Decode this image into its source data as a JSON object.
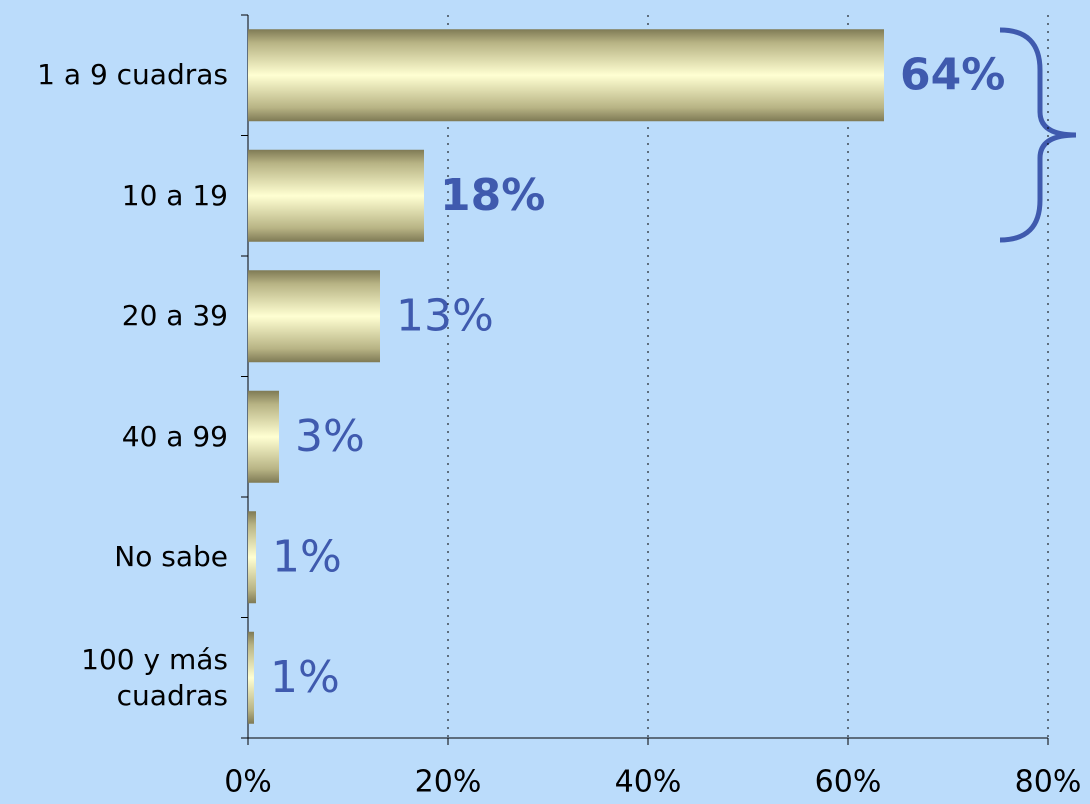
{
  "chart_data": {
    "type": "barh",
    "categories": [
      "1 a 9 cuadras",
      "10 a 19",
      "20 a 39",
      "40 a 99",
      "No sabe",
      "100 y más cuadras"
    ],
    "values": [
      63.6,
      17.6,
      13.2,
      3.1,
      0.8,
      0.6
    ],
    "value_labels": [
      "64%",
      "18%",
      "13%",
      "3%",
      "1%",
      "1%"
    ],
    "xlim": [
      0,
      80
    ],
    "xticks": [
      {
        "value": 0,
        "label": "0%"
      },
      {
        "value": 20,
        "label": "20%"
      },
      {
        "value": 40,
        "label": "40%"
      },
      {
        "value": 60,
        "label": "60%"
      },
      {
        "value": 80,
        "label": "80%"
      }
    ],
    "grid": true
  }
}
